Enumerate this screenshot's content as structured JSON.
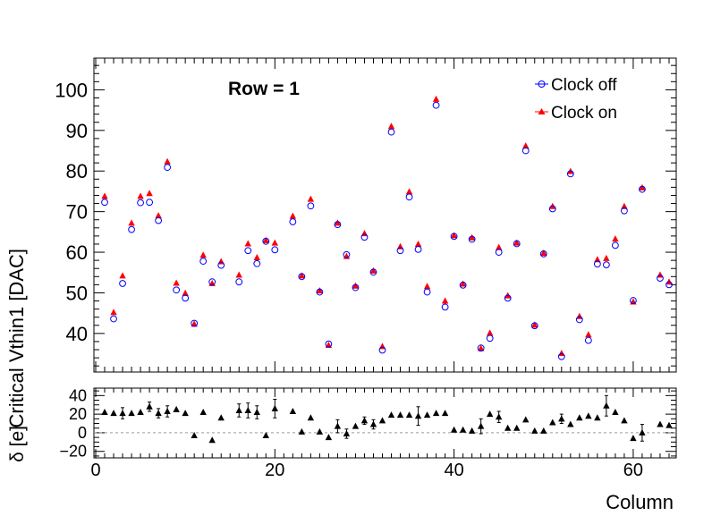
{
  "chart_data": [
    {
      "type": "scatter",
      "title": "Row = 1",
      "xlabel": "",
      "ylabel": "Critical Vthin1 [DAC]",
      "xlim": [
        -0.2,
        64.8
      ],
      "ylim": [
        30.5,
        107.8
      ],
      "yticks": [
        40,
        50,
        60,
        70,
        80,
        90,
        100
      ],
      "grid": false,
      "legend_position": "top-right",
      "series": [
        {
          "name": "Clock off",
          "color": "#0000ff",
          "marker": "open-circle",
          "x": [
            1,
            2,
            3,
            4,
            5,
            6,
            7,
            8,
            9,
            10,
            11,
            12,
            13,
            14,
            16,
            17,
            18,
            19,
            20,
            22,
            23,
            24,
            25,
            26,
            27,
            28,
            29,
            30,
            31,
            32,
            33,
            34,
            35,
            36,
            37,
            38,
            39,
            40,
            41,
            42,
            43,
            44,
            45,
            46,
            47,
            48,
            49,
            50,
            51,
            52,
            53,
            54,
            55,
            56,
            57,
            58,
            59,
            60,
            61,
            63,
            64
          ],
          "y": [
            72.3,
            43.6,
            52.3,
            65.6,
            72.2,
            72.3,
            67.8,
            80.9,
            50.7,
            48.7,
            42.5,
            57.8,
            52.7,
            56.8,
            52.7,
            60.4,
            57.2,
            62.7,
            60.6,
            67.5,
            54.0,
            71.4,
            50.2,
            37.4,
            66.8,
            59.4,
            51.3,
            63.7,
            55.1,
            35.9,
            89.6,
            60.4,
            73.6,
            60.7,
            50.2,
            96.2,
            46.5,
            63.9,
            51.9,
            63.2,
            36.4,
            38.8,
            60.0,
            48.7,
            62.1,
            85.0,
            41.9,
            59.6,
            70.7,
            34.3,
            79.3,
            43.4,
            38.3,
            57.1,
            56.9,
            61.7,
            70.2,
            48.1,
            75.5,
            53.6,
            52.0
          ]
        },
        {
          "name": "Clock on",
          "color": "#ff0000",
          "marker": "filled-triangle",
          "x": [
            1,
            2,
            3,
            4,
            5,
            6,
            7,
            8,
            9,
            10,
            11,
            12,
            13,
            14,
            16,
            17,
            18,
            19,
            20,
            22,
            23,
            24,
            25,
            26,
            27,
            28,
            29,
            30,
            31,
            32,
            33,
            34,
            35,
            36,
            37,
            38,
            39,
            40,
            41,
            42,
            43,
            44,
            45,
            46,
            47,
            48,
            49,
            50,
            51,
            52,
            53,
            54,
            55,
            56,
            57,
            58,
            59,
            60,
            61,
            63,
            64
          ],
          "y": [
            73.8,
            45.2,
            54.2,
            67.2,
            73.8,
            74.5,
            69.0,
            82.3,
            52.4,
            49.9,
            42.3,
            59.3,
            52.3,
            57.7,
            54.4,
            62.1,
            58.7,
            62.9,
            62.3,
            68.9,
            54.2,
            73.1,
            50.5,
            37.1,
            67.2,
            59.0,
            51.7,
            64.6,
            55.4,
            36.8,
            91.0,
            61.4,
            74.9,
            62.0,
            51.6,
            97.7,
            48.0,
            64.1,
            52.2,
            63.6,
            36.3,
            40.1,
            61.2,
            49.3,
            62.3,
            86.2,
            42.1,
            59.8,
            71.3,
            35.1,
            79.9,
            44.2,
            39.7,
            58.2,
            58.5,
            63.3,
            71.3,
            47.8,
            75.9,
            54.4,
            52.7
          ]
        }
      ]
    },
    {
      "type": "scatter",
      "title": "",
      "xlabel": "Column",
      "ylabel": "δ [e]",
      "xlim": [
        -0.2,
        64.8
      ],
      "ylim": [
        -27,
        48
      ],
      "xticks": [
        0,
        20,
        40,
        60
      ],
      "yticks": [
        -20,
        0,
        20,
        40
      ],
      "grid": false,
      "series": [
        {
          "name": "",
          "color": "#000000",
          "marker": "filled-triangle",
          "x": [
            1,
            2,
            3,
            4,
            5,
            6,
            7,
            8,
            9,
            10,
            11,
            12,
            13,
            14,
            16,
            17,
            18,
            19,
            20,
            22,
            23,
            24,
            25,
            26,
            27,
            28,
            29,
            30,
            31,
            32,
            33,
            34,
            35,
            36,
            37,
            38,
            39,
            40,
            41,
            42,
            43,
            44,
            45,
            46,
            47,
            48,
            49,
            50,
            51,
            52,
            53,
            54,
            55,
            56,
            57,
            58,
            59,
            60,
            61,
            63,
            64
          ],
          "y": [
            22,
            21,
            21,
            21,
            22,
            28,
            21,
            23,
            25,
            21,
            -3,
            22,
            -8,
            16,
            24,
            24,
            22,
            -3,
            26,
            23,
            1,
            16,
            1,
            -5,
            7,
            -1,
            7,
            13,
            9,
            13,
            19,
            19,
            19,
            18,
            19,
            21,
            21,
            3,
            3,
            2,
            7,
            20,
            17,
            5,
            5,
            14,
            2,
            2,
            11,
            15,
            9,
            16,
            18,
            16,
            29,
            22,
            13,
            -6,
            0,
            9,
            8
          ],
          "yerr": [
            0,
            0,
            6,
            0,
            0,
            5,
            5,
            6,
            0,
            0,
            0,
            0,
            0,
            0,
            7,
            8,
            7,
            0,
            10,
            0,
            0,
            0,
            0,
            0,
            7,
            5,
            0,
            4,
            5,
            0,
            0,
            0,
            0,
            10,
            0,
            0,
            0,
            0,
            0,
            0,
            8,
            0,
            6,
            0,
            0,
            0,
            0,
            0,
            0,
            5,
            0,
            0,
            0,
            0,
            11,
            0,
            0,
            0,
            9,
            0,
            0
          ]
        }
      ]
    }
  ]
}
